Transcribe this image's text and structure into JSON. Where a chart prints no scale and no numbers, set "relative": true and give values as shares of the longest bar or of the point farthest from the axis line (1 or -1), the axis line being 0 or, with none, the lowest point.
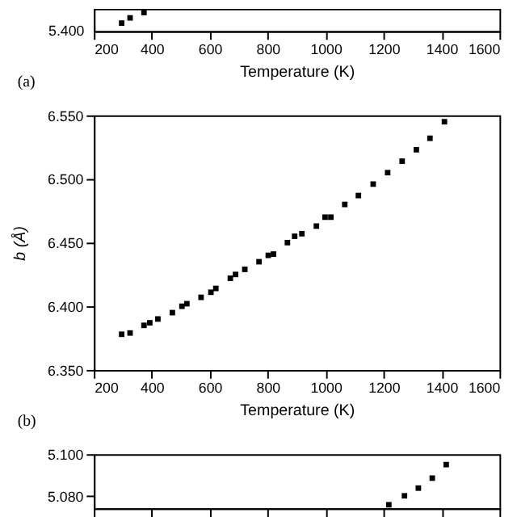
{
  "chart_data": [
    {
      "type": "scatter",
      "xlabel": "Temperature (K)",
      "annotations": [
        "(a)",
        "5.400"
      ],
      "x": [
        296,
        325,
        373
      ],
      "values": [
        0.43,
        0.71,
        1
      ],
      "relative": true,
      "color": "#000000",
      "marker": "square",
      "xlim": [
        200,
        1600
      ],
      "xticks": [
        200,
        400,
        600,
        800,
        1000,
        1200,
        1400,
        1600
      ],
      "grid": false
    },
    {
      "type": "scatter",
      "xlabel": "Temperature (K)",
      "ylabel": "b (Å)",
      "annotations": [
        "(b)"
      ],
      "x": [
        296,
        325,
        373,
        393,
        421,
        471,
        504,
        521,
        570,
        604,
        621,
        671,
        689,
        721,
        770,
        802,
        820,
        868,
        893,
        918,
        968,
        998,
        1018,
        1066,
        1113,
        1164,
        1214,
        1264,
        1313,
        1360,
        1410
      ],
      "values": [
        6.378,
        6.379,
        6.385,
        6.387,
        6.39,
        6.395,
        6.4,
        6.402,
        6.407,
        6.411,
        6.414,
        6.422,
        6.425,
        6.429,
        6.435,
        6.44,
        6.441,
        6.45,
        6.455,
        6.457,
        6.463,
        6.47,
        6.47,
        6.48,
        6.487,
        6.496,
        6.505,
        6.514,
        6.523,
        6.532,
        6.545
      ],
      "color": "#000000",
      "marker": "square",
      "xlim": [
        200,
        1600
      ],
      "xticks": [
        200,
        400,
        600,
        800,
        1000,
        1200,
        1400,
        1600
      ],
      "ylim": [
        6.35,
        6.55
      ],
      "yticks": [
        {
          "value": 6.35,
          "label": "6.350"
        },
        {
          "value": 6.4,
          "label": "6.400"
        },
        {
          "value": 6.45,
          "label": "6.450"
        },
        {
          "value": 6.5,
          "label": "6.500"
        },
        {
          "value": 6.55,
          "label": "6.550"
        }
      ],
      "grid": false
    },
    {
      "type": "scatter",
      "x": [
        1218,
        1272,
        1320,
        1368,
        1416
      ],
      "values": [
        5.0757,
        5.08,
        5.0837,
        5.0885,
        5.095
      ],
      "color": "#000000",
      "marker": "square",
      "xlim": [
        200,
        1600
      ],
      "xticks": [
        200,
        400,
        600,
        800,
        1000,
        1200,
        1400,
        1600
      ],
      "ylim": [
        5.074,
        5.1
      ],
      "yticks": [
        {
          "value": 5.08,
          "label": "5.080"
        },
        {
          "value": 5.1,
          "label": "5.100"
        }
      ],
      "tick_labels": "y",
      "grid": false
    }
  ]
}
